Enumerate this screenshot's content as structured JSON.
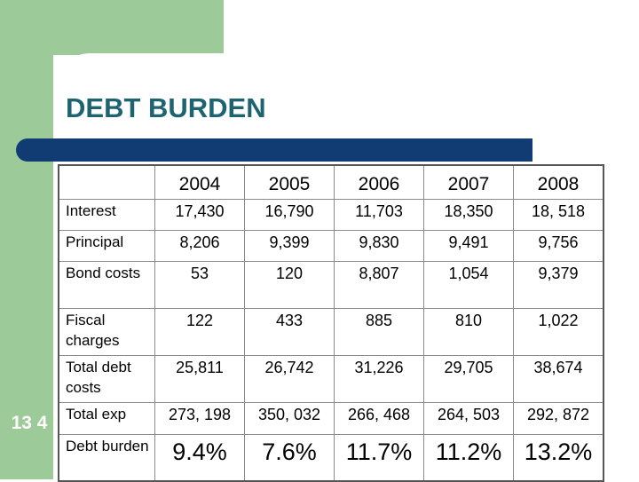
{
  "title": "DEBT BURDEN",
  "slide_number": "13 4",
  "colors": {
    "green": "#9ccb99",
    "title": "#1e6470",
    "bar": "#103c73"
  },
  "table": {
    "years": [
      "2004",
      "2005",
      "2006",
      "2007",
      "2008"
    ],
    "rows": [
      {
        "label": "Interest",
        "values": [
          "17,430",
          "16,790",
          "11,703",
          "18,350",
          "18, 518"
        ]
      },
      {
        "label": "Principal",
        "values": [
          "8,206",
          "9,399",
          "9,830",
          "9,491",
          "9,756"
        ]
      },
      {
        "label": "Bond costs",
        "values": [
          "53",
          "120",
          "8,807",
          "1,054",
          "9,379"
        ]
      },
      {
        "label": "Fiscal charges",
        "values": [
          "122",
          "433",
          "885",
          "810",
          "1,022"
        ]
      },
      {
        "label": "Total debt costs",
        "values": [
          "25,811",
          "26,742",
          "31,226",
          "29,705",
          "38,674"
        ]
      },
      {
        "label": "Total exp",
        "values": [
          "273, 198",
          "350, 032",
          "266, 468",
          "264, 503",
          "292, 872"
        ]
      },
      {
        "label": "Debt burden",
        "values": [
          "9.4%",
          "7.6%",
          "11.7%",
          "11.2%",
          "13.2%"
        ]
      }
    ]
  }
}
